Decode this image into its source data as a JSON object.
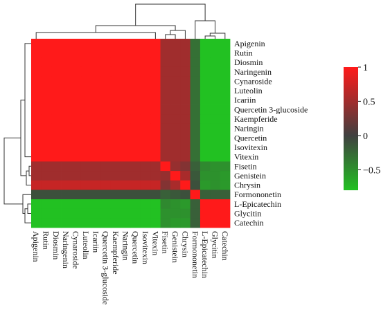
{
  "chart_data": {
    "type": "heatmap",
    "title": "",
    "xlabel": "",
    "ylabel": "",
    "row_labels": [
      "Apigenin",
      "Rutin",
      "Diosmin",
      "Naringenin",
      "Cynaroside",
      "Luteolin",
      "Icariin",
      "Quercetin 3-glucoside",
      "Kaempferide",
      "Naringin",
      "Quercetin",
      "Isovitexin",
      "Vitexin",
      "Fisetin",
      "Genistein",
      "Chrysin",
      "Formononetin",
      "L-Epicatechin",
      "Glycitin",
      "Catechin"
    ],
    "col_labels": [
      "Apigenin",
      "Rutin",
      "Diosmin",
      "Naringenin",
      "Cynaroside",
      "Luteolin",
      "Icariin",
      "Quercetin 3-glucoside",
      "Kaempferide",
      "Naringin",
      "Quercetin",
      "Isovitexin",
      "Vitexin",
      "Fisetin",
      "Genistein",
      "Chrysin",
      "Formononetin",
      "L-Epicatechin",
      "Glycitin",
      "Catechin"
    ],
    "values": [
      [
        1,
        1,
        1,
        1,
        1,
        1,
        1,
        1,
        1,
        1,
        1,
        1,
        1,
        0.5,
        0.5,
        0.5,
        -0.3,
        -0.8,
        -0.8,
        -0.8
      ],
      [
        1,
        1,
        1,
        1,
        1,
        1,
        1,
        1,
        1,
        1,
        1,
        1,
        1,
        0.5,
        0.5,
        0.5,
        -0.3,
        -0.8,
        -0.8,
        -0.8
      ],
      [
        1,
        1,
        1,
        1,
        1,
        1,
        1,
        1,
        1,
        1,
        1,
        1,
        1,
        0.5,
        0.5,
        0.5,
        -0.3,
        -0.8,
        -0.8,
        -0.8
      ],
      [
        1,
        1,
        1,
        1,
        1,
        1,
        1,
        1,
        1,
        1,
        1,
        1,
        1,
        0.5,
        0.5,
        0.5,
        -0.3,
        -0.8,
        -0.8,
        -0.8
      ],
      [
        1,
        1,
        1,
        1,
        1,
        1,
        1,
        1,
        1,
        1,
        1,
        1,
        1,
        0.5,
        0.5,
        0.5,
        -0.3,
        -0.8,
        -0.8,
        -0.8
      ],
      [
        1,
        1,
        1,
        1,
        1,
        1,
        1,
        1,
        1,
        1,
        1,
        1,
        1,
        0.5,
        0.5,
        0.5,
        -0.3,
        -0.8,
        -0.8,
        -0.8
      ],
      [
        1,
        1,
        1,
        1,
        1,
        1,
        1,
        1,
        1,
        1,
        1,
        1,
        1,
        0.5,
        0.5,
        0.5,
        -0.3,
        -0.8,
        -0.8,
        -0.8
      ],
      [
        1,
        1,
        1,
        1,
        1,
        1,
        1,
        1,
        1,
        1,
        1,
        1,
        1,
        0.5,
        0.5,
        0.5,
        -0.3,
        -0.8,
        -0.8,
        -0.8
      ],
      [
        1,
        1,
        1,
        1,
        1,
        1,
        1,
        1,
        1,
        1,
        1,
        1,
        1,
        0.5,
        0.5,
        0.5,
        -0.3,
        -0.8,
        -0.8,
        -0.8
      ],
      [
        1,
        1,
        1,
        1,
        1,
        1,
        1,
        1,
        1,
        1,
        1,
        1,
        1,
        0.5,
        0.5,
        0.5,
        -0.3,
        -0.8,
        -0.8,
        -0.8
      ],
      [
        1,
        1,
        1,
        1,
        1,
        1,
        1,
        1,
        1,
        1,
        1,
        1,
        1,
        0.5,
        0.5,
        0.5,
        -0.3,
        -0.8,
        -0.8,
        -0.8
      ],
      [
        1,
        1,
        1,
        1,
        1,
        1,
        1,
        1,
        1,
        1,
        1,
        1,
        1,
        0.5,
        0.5,
        0.5,
        -0.3,
        -0.8,
        -0.8,
        -0.8
      ],
      [
        1,
        1,
        1,
        1,
        1,
        1,
        1,
        1,
        1,
        1,
        1,
        1,
        1,
        0.5,
        0.5,
        0.5,
        -0.3,
        -0.8,
        -0.8,
        -0.8
      ],
      [
        0.5,
        0.5,
        0.5,
        0.5,
        0.5,
        0.5,
        0.5,
        0.5,
        0.5,
        0.5,
        0.5,
        0.5,
        0.5,
        1,
        0.45,
        0.35,
        -0.2,
        -0.45,
        -0.5,
        -0.5
      ],
      [
        0.5,
        0.5,
        0.5,
        0.5,
        0.5,
        0.5,
        0.5,
        0.5,
        0.5,
        0.5,
        0.5,
        0.5,
        0.5,
        0.45,
        1,
        0.55,
        -0.15,
        -0.5,
        -0.5,
        -0.55
      ],
      [
        0.7,
        0.7,
        0.7,
        0.7,
        0.7,
        0.7,
        0.7,
        0.7,
        0.7,
        0.7,
        0.7,
        0.7,
        0.7,
        0.35,
        0.55,
        1,
        -0.1,
        -0.55,
        -0.5,
        -0.55
      ],
      [
        -0.1,
        -0.1,
        -0.1,
        -0.1,
        -0.1,
        -0.1,
        -0.1,
        -0.1,
        -0.1,
        -0.1,
        -0.1,
        -0.1,
        -0.1,
        -0.2,
        -0.15,
        -0.1,
        1,
        -0.2,
        -0.2,
        -0.2
      ],
      [
        -0.8,
        -0.8,
        -0.8,
        -0.8,
        -0.8,
        -0.8,
        -0.8,
        -0.8,
        -0.8,
        -0.8,
        -0.8,
        -0.8,
        -0.8,
        -0.45,
        -0.5,
        -0.55,
        -0.2,
        1,
        1,
        1
      ],
      [
        -0.8,
        -0.8,
        -0.8,
        -0.8,
        -0.8,
        -0.8,
        -0.8,
        -0.8,
        -0.8,
        -0.8,
        -0.8,
        -0.8,
        -0.8,
        -0.5,
        -0.5,
        -0.5,
        -0.2,
        1,
        1,
        1
      ],
      [
        -0.8,
        -0.8,
        -0.8,
        -0.8,
        -0.8,
        -0.8,
        -0.8,
        -0.8,
        -0.8,
        -0.8,
        -0.8,
        -0.8,
        -0.8,
        -0.5,
        -0.55,
        -0.55,
        -0.2,
        1,
        1,
        1
      ]
    ],
    "color_scale": {
      "min": -0.8,
      "max": 1,
      "low_color": "#22c122",
      "mid_color": "#404040",
      "high_color": "#ff1a1a",
      "ticks": [
        1,
        0.5,
        0,
        -0.5
      ],
      "tick_labels": [
        "1",
        "0.5",
        "0",
        "−0.5"
      ]
    },
    "legend_position": "right",
    "dendrograms": "top and left"
  }
}
